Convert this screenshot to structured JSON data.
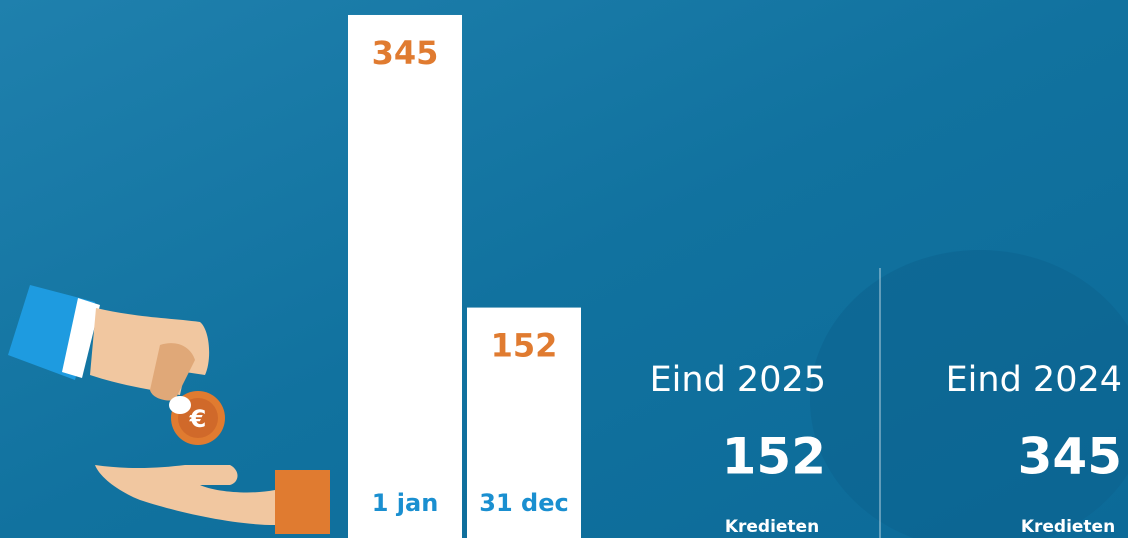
{
  "chart_data": {
    "type": "bar",
    "categories": [
      "1 jan",
      "31 dec"
    ],
    "values": [
      345,
      152
    ],
    "color": "#ffffff",
    "value_label_color": "#e07b30",
    "category_label_color": "#1a8fd0"
  },
  "summary": [
    {
      "title": "Eind 2025",
      "value": 152,
      "unit": "Kredieten"
    },
    {
      "title": "Eind 2024",
      "value": 345,
      "unit": "Kredieten"
    }
  ]
}
